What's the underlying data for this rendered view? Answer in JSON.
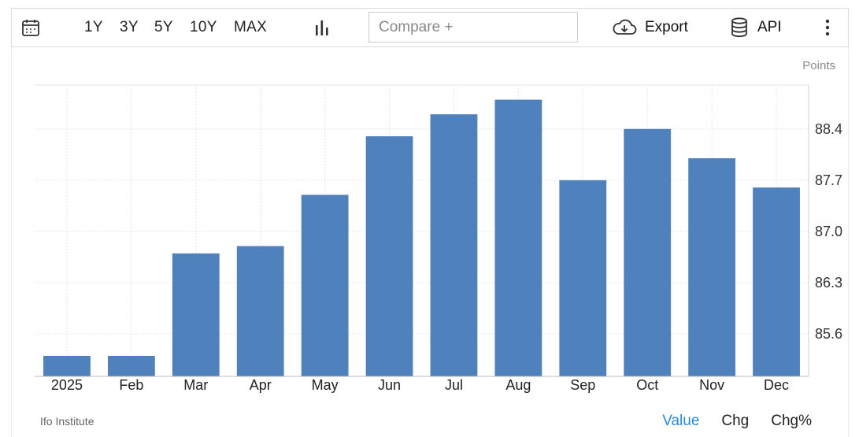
{
  "toolbar": {
    "ranges": [
      "1Y",
      "3Y",
      "5Y",
      "10Y",
      "MAX"
    ],
    "compare_placeholder": "Compare +",
    "export_label": "Export",
    "api_label": "API",
    "icons": [
      "calendar-icon",
      "bar-chart-icon",
      "cloud-download-icon",
      "database-icon",
      "more-vertical-icon"
    ]
  },
  "footer": {
    "source": "Ifo Institute",
    "tabs": [
      "Value",
      "Chg",
      "Chg%"
    ],
    "active_tab": "Value"
  },
  "colors": {
    "bar": "#4f81bd",
    "active_tab": "#2a8ad8",
    "grid": "#e6e6e6"
  },
  "chart_data": {
    "type": "bar",
    "categories": [
      "2025",
      "Feb",
      "Mar",
      "Apr",
      "May",
      "Jun",
      "Jul",
      "Aug",
      "Sep",
      "Oct",
      "Nov",
      "Dec"
    ],
    "values": [
      85.3,
      85.3,
      86.7,
      86.8,
      87.5,
      88.3,
      88.6,
      88.8,
      87.7,
      88.4,
      88.0,
      87.6
    ],
    "unit": "Points",
    "yticks": [
      85.6,
      86.3,
      87.0,
      87.7,
      88.4
    ],
    "ylim": [
      85.02,
      89.0
    ],
    "y_axis_position": "right",
    "grid": true
  }
}
